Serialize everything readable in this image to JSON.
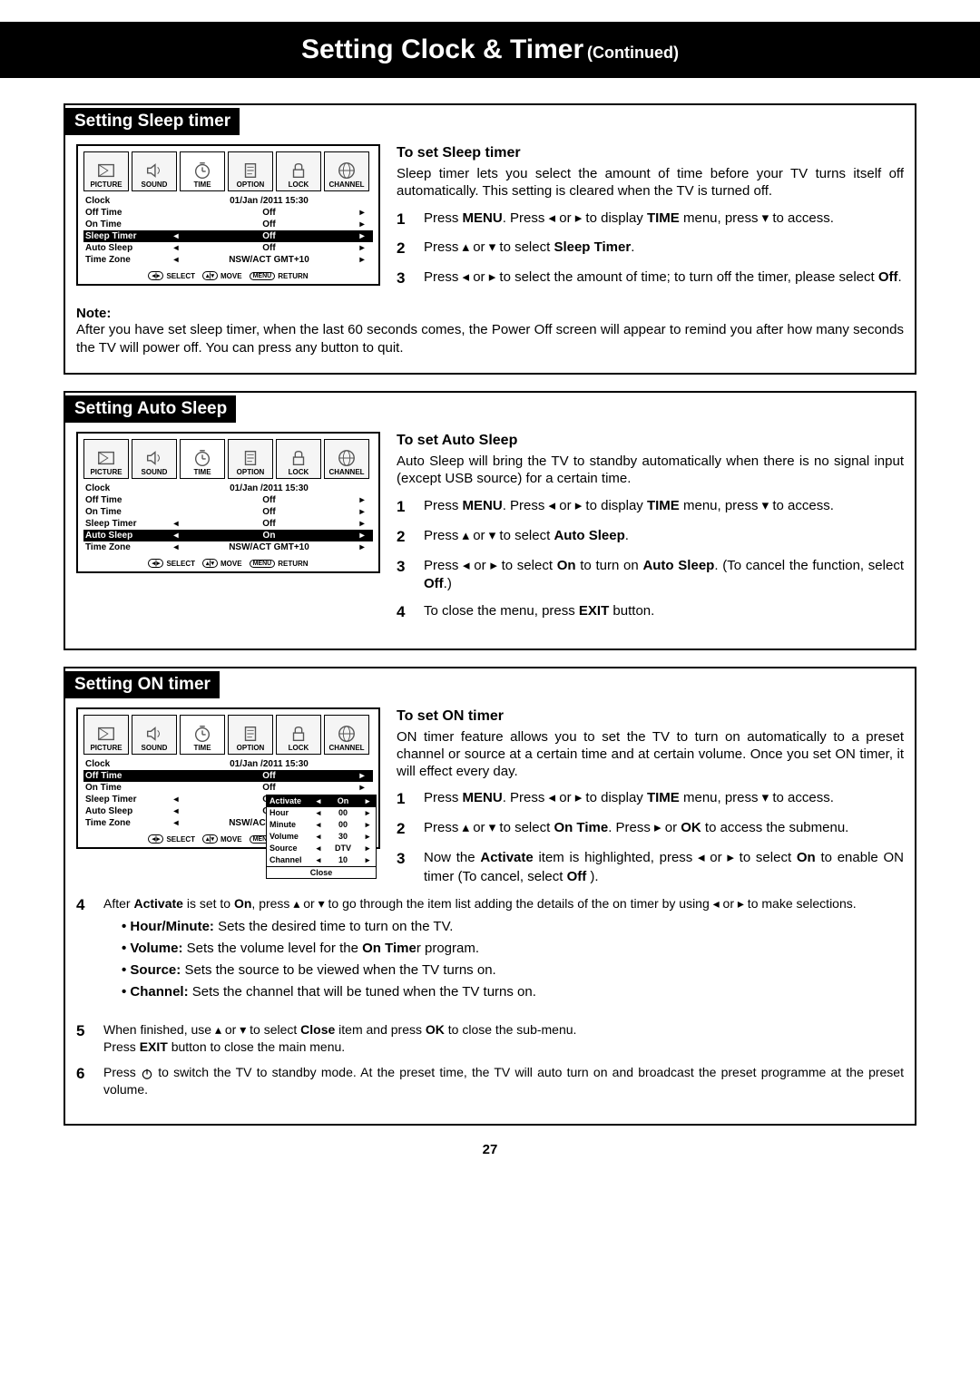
{
  "title": {
    "main": "Setting Clock & Timer",
    "cont": "(Continued)"
  },
  "tabs": [
    "PICTURE",
    "SOUND",
    "TIME",
    "OPTION",
    "LOCK",
    "CHANNEL"
  ],
  "menu_common": {
    "clock_label": "Clock",
    "clock_value": "01/Jan /2011 15:30",
    "off_time_label": "Off Time",
    "on_time_label": "On Time",
    "sleep_timer_label": "Sleep Timer",
    "auto_sleep_label": "Auto Sleep",
    "time_zone_label": "Time Zone",
    "tz_value": "NSW/ACT GMT+10",
    "footer_select": "SELECT",
    "footer_move": "MOVE",
    "footer_return": "RETURN",
    "footer_menu_btn": "MENU"
  },
  "sleep": {
    "heading": "Setting Sleep timer",
    "sub": "To set Sleep timer",
    "intro": "Sleep timer lets you select the amount of time before your TV turns itself off automatically. This setting is cleared when the TV is turned off.",
    "menu": {
      "off_time": "Off",
      "on_time": "Off",
      "sleep_timer": "Off",
      "auto_sleep": "Off",
      "highlight": "sleep_timer"
    },
    "steps": [
      "Press MENU. Press ◂ or ▸ to display TIME menu, press ▾ to access.",
      "Press ▴ or ▾ to select Sleep Timer.",
      "Press ◂ or ▸ to select the amount of time; to turn off the timer, please select Off."
    ],
    "note_label": "Note:",
    "note": "After you have set sleep timer, when the last 60 seconds comes, the Power Off screen will appear to remind you after how many seconds the TV will power off. You can press any button to quit."
  },
  "auto": {
    "heading": "Setting Auto Sleep",
    "sub": "To set Auto Sleep",
    "intro": "Auto Sleep will bring the TV to standby automatically when there is no signal input (except USB source) for a certain time.",
    "menu": {
      "off_time": "Off",
      "on_time": "Off",
      "sleep_timer": "Off",
      "auto_sleep": "On",
      "highlight": "auto_sleep"
    },
    "steps": [
      "Press MENU. Press ◂ or ▸ to display TIME menu, press ▾ to access.",
      "Press ▴ or ▾ to select Auto Sleep.",
      "Press ◂ or ▸ to select On to turn on Auto Sleep. (To cancel the function, select Off.)",
      "To close the menu, press EXIT button."
    ]
  },
  "on": {
    "heading": "Setting ON timer",
    "sub": "To set ON timer",
    "intro": "ON timer feature allows you to set the TV to turn on automatically to a preset channel or source at a certain time and at certain volume. Once you set ON timer, it will effect every day.",
    "menu": {
      "off_time": "Off",
      "on_time": "Off",
      "sleep_timer": "Off",
      "auto_sleep": "Off",
      "highlight": "off_time"
    },
    "submenu": {
      "activate": "On",
      "hour": "00",
      "minute": "00",
      "volume": "30",
      "source": "DTV",
      "channel": "10",
      "close": "Close",
      "labels": {
        "activate": "Activate",
        "hour": "Hour",
        "minute": "Minute",
        "volume": "Volume",
        "source": "Source",
        "channel": "Channel"
      }
    },
    "steps_right": [
      "Press MENU. Press ◂ or ▸ to display TIME menu, press ▾ to access.",
      "Press ▴ or ▾ to select On Time. Press ▸ or OK to access the submenu.",
      "Now the Activate item is highlighted, press ◂ or ▸ to select On to enable ON timer (To cancel, select Off )."
    ],
    "step4": "After Activate is set to On, press ▴ or ▾ to go through the item list adding the details of the on timer by using ◂ or ▸ to make selections.",
    "bullets": [
      "Hour/Minute: Sets the desired time to turn on the TV.",
      "Volume: Sets the volume level for the On Timer program.",
      "Source: Sets the source to be viewed when the TV turns on.",
      "Channel: Sets the channel that will be tuned when the TV turns on."
    ],
    "step5a": "When finished, use ▴ or ▾ to select Close item and press OK to close the sub-menu.",
    "step5b": "Press EXIT button to close the main menu.",
    "step6": "Press ⏻ to switch the TV to standby mode. At the preset time, the TV will auto turn on and broadcast the preset programme at the preset volume."
  },
  "page_number": "27"
}
